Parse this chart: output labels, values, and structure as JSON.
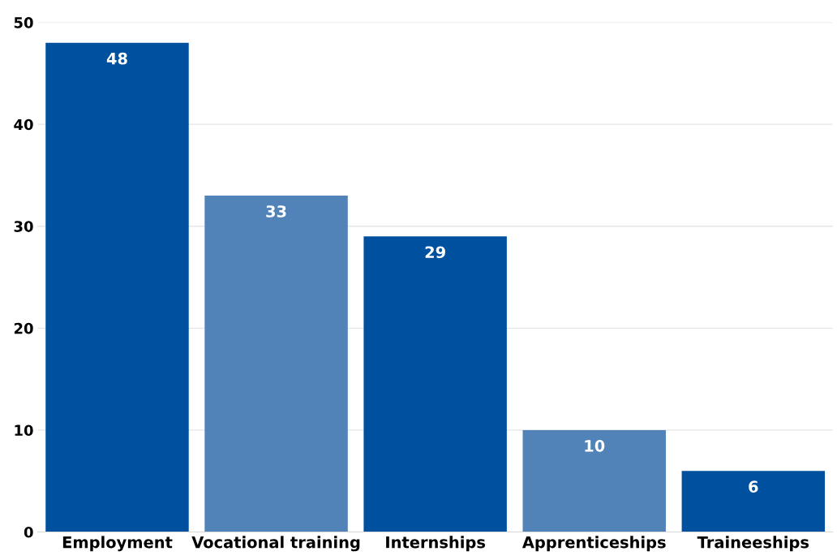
{
  "chart_data": {
    "type": "bar",
    "categories": [
      "Employment",
      "Vocational training",
      "Internships",
      "Apprenticeships",
      "Traineeships"
    ],
    "values": [
      48,
      33,
      29,
      10,
      6
    ],
    "colors": [
      "#0050a0",
      "#5183b8",
      "#0050a0",
      "#5183b8",
      "#0050a0"
    ],
    "ylim": [
      0,
      50
    ],
    "yticks": [
      0,
      10,
      20,
      30,
      40,
      50
    ],
    "grid": "y",
    "data_labels": true
  }
}
